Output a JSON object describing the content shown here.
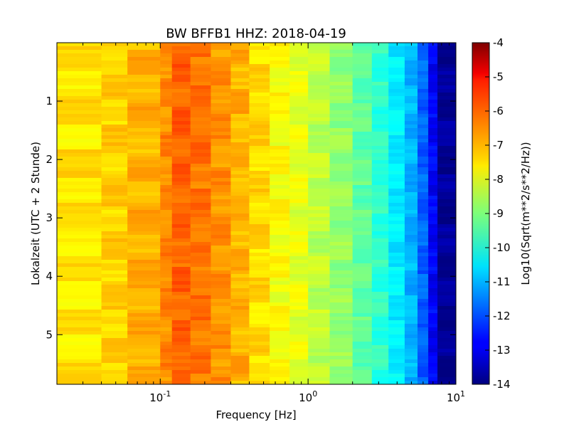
{
  "chart_data": {
    "type": "heatmap",
    "title": "BW BFFB1 HHZ: 2018-04-19",
    "xlabel": "Frequency [Hz]",
    "ylabel": "Lokalzeit (UTC + 2 Stunde)",
    "x_scale": "log",
    "xlim": [
      0.02,
      10
    ],
    "ylim": [
      0,
      5.85
    ],
    "y_inverted": true,
    "x_ticks": [
      {
        "value": 0.1,
        "base": "10",
        "exp": "-1"
      },
      {
        "value": 1,
        "base": "10",
        "exp": "0"
      },
      {
        "value": 10,
        "base": "10",
        "exp": "1"
      }
    ],
    "y_ticks": [
      {
        "value": 1,
        "label": "1"
      },
      {
        "value": 2,
        "label": "2"
      },
      {
        "value": 3,
        "label": "3"
      },
      {
        "value": 4,
        "label": "4"
      },
      {
        "value": 5,
        "label": "5"
      }
    ],
    "colormap": "jet",
    "colorbar": {
      "label": "Log10(Sqrt(m**2/s**2/Hz))",
      "range": [
        -14,
        -4
      ],
      "ticks": [
        "-4",
        "-5",
        "-6",
        "-7",
        "-8",
        "-9",
        "-10",
        "-11",
        "-12",
        "-13",
        "-14"
      ]
    },
    "frequency_bands": [
      {
        "f_min": 0.02,
        "f_max": 0.04,
        "value": -7.5
      },
      {
        "f_min": 0.04,
        "f_max": 0.06,
        "value": -7.3
      },
      {
        "f_min": 0.06,
        "f_max": 0.1,
        "value": -7.0
      },
      {
        "f_min": 0.1,
        "f_max": 0.12,
        "value": -6.6
      },
      {
        "f_min": 0.12,
        "f_max": 0.16,
        "value": -6.2
      },
      {
        "f_min": 0.16,
        "f_max": 0.22,
        "value": -6.4
      },
      {
        "f_min": 0.22,
        "f_max": 0.3,
        "value": -6.7
      },
      {
        "f_min": 0.3,
        "f_max": 0.4,
        "value": -7.0
      },
      {
        "f_min": 0.4,
        "f_max": 0.55,
        "value": -7.4
      },
      {
        "f_min": 0.55,
        "f_max": 0.75,
        "value": -7.8
      },
      {
        "f_min": 0.75,
        "f_max": 1.0,
        "value": -8.0
      },
      {
        "f_min": 1.0,
        "f_max": 1.4,
        "value": -8.4
      },
      {
        "f_min": 1.4,
        "f_max": 2.0,
        "value": -8.8
      },
      {
        "f_min": 2.0,
        "f_max": 2.7,
        "value": -9.3
      },
      {
        "f_min": 2.7,
        "f_max": 3.5,
        "value": -9.8
      },
      {
        "f_min": 3.5,
        "f_max": 4.5,
        "value": -10.4
      },
      {
        "f_min": 4.5,
        "f_max": 5.5,
        "value": -11.0
      },
      {
        "f_min": 5.5,
        "f_max": 6.5,
        "value": -11.8
      },
      {
        "f_min": 6.5,
        "f_max": 7.5,
        "value": -12.8
      },
      {
        "f_min": 7.5,
        "f_max": 10,
        "value": -13.8
      }
    ]
  }
}
